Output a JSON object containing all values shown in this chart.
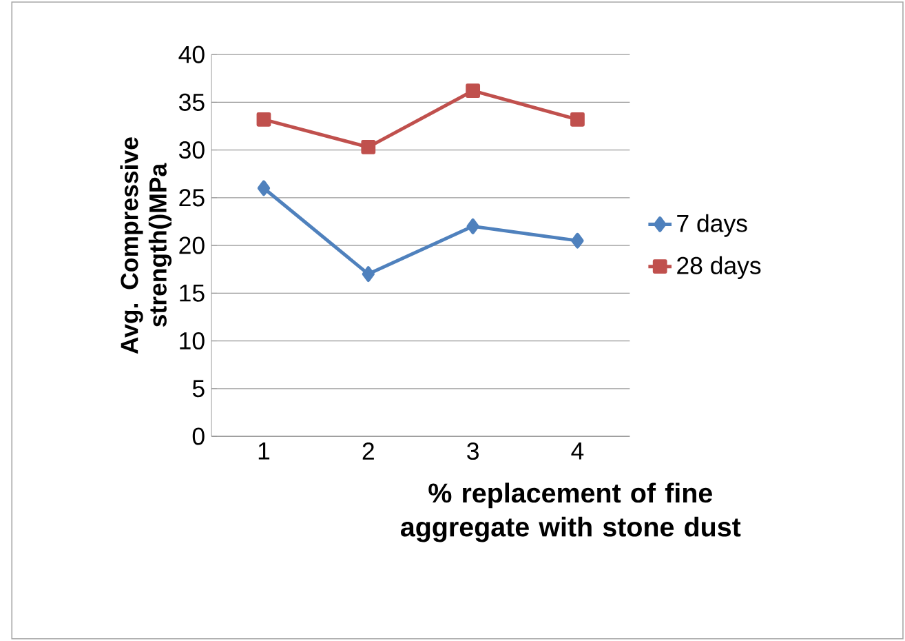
{
  "chart_data": {
    "type": "line",
    "xlabel": "% replacement of fine aggregate with stone dust",
    "ylabel": "Avg. Compressive strength()MPa",
    "categories": [
      "1",
      "2",
      "3",
      "4"
    ],
    "series": [
      {
        "name": "7 days",
        "color": "#4f81bd",
        "marker": "diamond",
        "values": [
          26,
          17,
          22,
          20.5
        ]
      },
      {
        "name": "28 days",
        "color": "#c0504d",
        "marker": "square",
        "values": [
          33.2,
          30.3,
          36.2,
          33.2
        ]
      }
    ],
    "ylim": [
      0,
      40
    ],
    "yticks": [
      0,
      5,
      10,
      15,
      20,
      25,
      30,
      35,
      40
    ],
    "grid": "y",
    "legend": "right",
    "line_style": "solid"
  }
}
